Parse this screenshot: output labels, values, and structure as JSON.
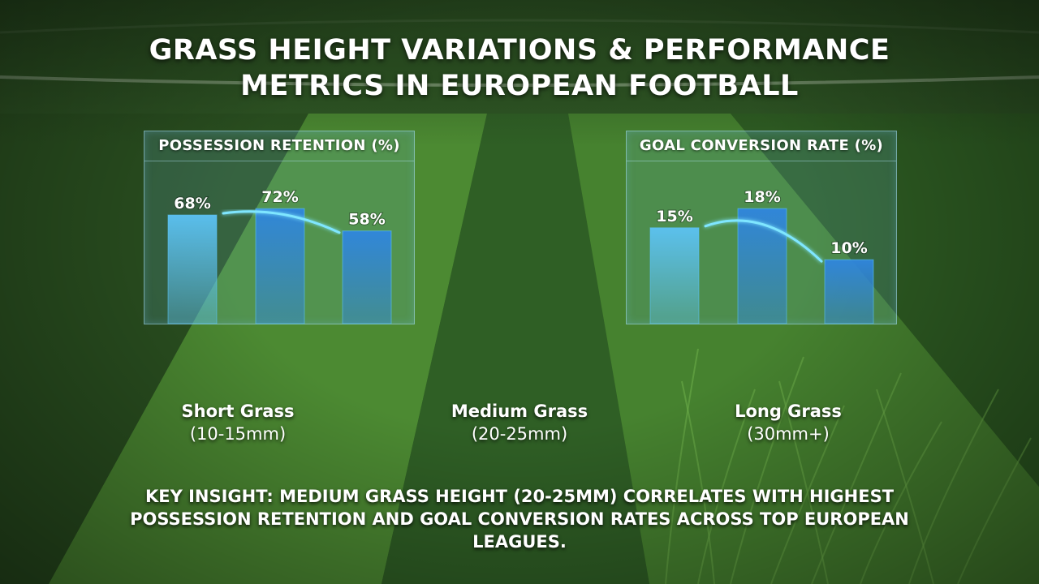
{
  "title_line1": "GRASS HEIGHT VARIATIONS & PERFORMANCE",
  "title_line2": "METRICS IN EUROPEAN FOOTBALL",
  "categories": [
    {
      "name": "Short Grass",
      "range": "(10-15mm)"
    },
    {
      "name": "Medium Grass",
      "range": "(20-25mm)"
    },
    {
      "name": "Long Grass",
      "range": "(30mm+)"
    }
  ],
  "insight": "KEY INSIGHT: MEDIUM GRASS HEIGHT (20-25MM) CORRELATES WITH HIGHEST POSSESSION RETENTION AND GOAL CONVERSION RATES ACROSS TOP EUROPEAN LEAGUES.",
  "colors": {
    "bar_light": "#5cc3f5",
    "bar_mid": "#2f86e0",
    "trend_line": "#7fe6ff",
    "panel_border": "#aae1fa"
  },
  "chart_data": [
    {
      "type": "bar",
      "title": "POSSESSION RETENTION (%)",
      "categories": [
        "Short Grass",
        "Medium Grass",
        "Long Grass"
      ],
      "values": [
        68,
        72,
        58
      ],
      "labels": [
        "68%",
        "72%",
        "58%"
      ],
      "ylim": [
        0,
        100
      ],
      "trend_line": true,
      "grid": false
    },
    {
      "type": "bar",
      "title": "GOAL CONVERSION RATE (%)",
      "categories": [
        "Short Grass",
        "Medium Grass",
        "Long Grass"
      ],
      "values": [
        15,
        18,
        10
      ],
      "labels": [
        "15%",
        "18%",
        "10%"
      ],
      "ylim": [
        0,
        25
      ],
      "trend_line": true,
      "grid": false
    }
  ]
}
